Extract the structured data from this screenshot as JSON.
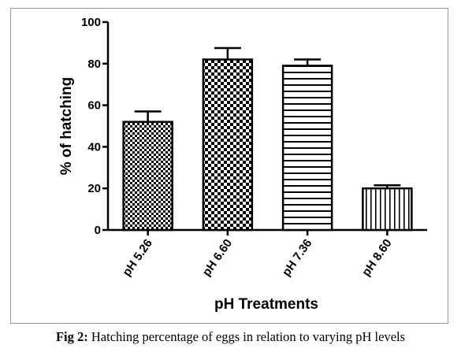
{
  "figure": {
    "caption_label": "Fig 2:",
    "caption_text": " Hatching percentage of eggs in relation to varying pH levels"
  },
  "chart_data": {
    "type": "bar",
    "title": "",
    "xlabel": "pH Treatments",
    "ylabel": "% of hatching",
    "ylim": [
      0,
      100
    ],
    "yticks": [
      0,
      20,
      40,
      60,
      80,
      100
    ],
    "categories": [
      "pH 5.26",
      "pH 6.60",
      "pH 7.36",
      "pH 8.60"
    ],
    "values": [
      52,
      82,
      79,
      20
    ],
    "errors": [
      5,
      5.5,
      3,
      1.5
    ],
    "patterns": [
      "fine-checker",
      "coarse-checker",
      "horizontal-lines",
      "vertical-lines"
    ],
    "grid": false,
    "colors": {
      "bar_stroke": "#000000",
      "fill": "#000000",
      "background": "#ffffff"
    }
  }
}
